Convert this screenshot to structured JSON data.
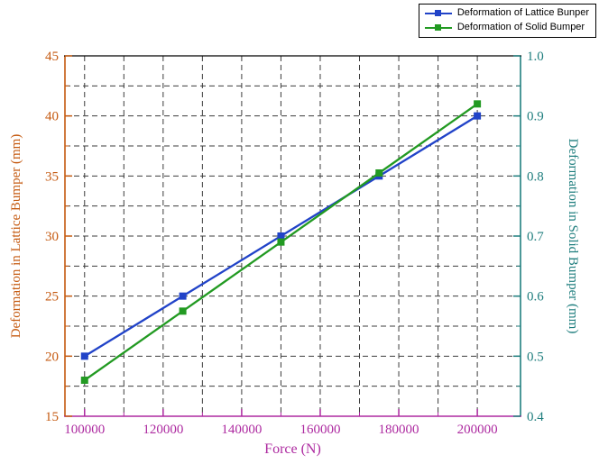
{
  "figure": {
    "background": "#ffffff"
  },
  "legend": {
    "border_color": "#000000",
    "position": "top-right"
  },
  "chart_data": {
    "type": "line",
    "title": "",
    "x": [
      100000,
      125000,
      150000,
      175000,
      200000
    ],
    "series": [
      {
        "name": "Deformation of Lattice Bunper",
        "axis": "left",
        "color": "#2143c8",
        "marker": "square",
        "values": [
          20,
          25,
          30,
          35,
          40
        ]
      },
      {
        "name": "Deformation of Solid Bumper",
        "axis": "right",
        "color": "#229a22",
        "marker": "square",
        "values": [
          0.46,
          0.575,
          0.69,
          0.805,
          0.92
        ]
      }
    ],
    "xlabel": "Force (N)",
    "x_axis": {
      "color": "#ad2aa0",
      "ticks": [
        100000,
        120000,
        140000,
        160000,
        180000,
        200000
      ],
      "minor_step": 10000,
      "display_range": [
        95000,
        211000
      ]
    },
    "left_axis": {
      "label": "Deformation in Lattice Bumper (mm)",
      "color": "#c55a11",
      "range": [
        15,
        45
      ],
      "ticks": [
        15,
        20,
        25,
        30,
        35,
        40,
        45
      ],
      "minor_step": 2.5
    },
    "right_axis": {
      "label": "Deformation in Solid Bumper (mm)",
      "color": "#1f7e7e",
      "range": [
        0.4,
        1.0
      ],
      "ticks": [
        0.4,
        0.5,
        0.6,
        0.7,
        0.8,
        0.9,
        1.0
      ],
      "minor_step": 0.05
    },
    "grid": {
      "show": true,
      "style": "dashed",
      "color": "#3c3c3c"
    },
    "legend_entries": [
      "Deformation of Lattice Bunper",
      "Deformation of Solid Bumper"
    ]
  }
}
